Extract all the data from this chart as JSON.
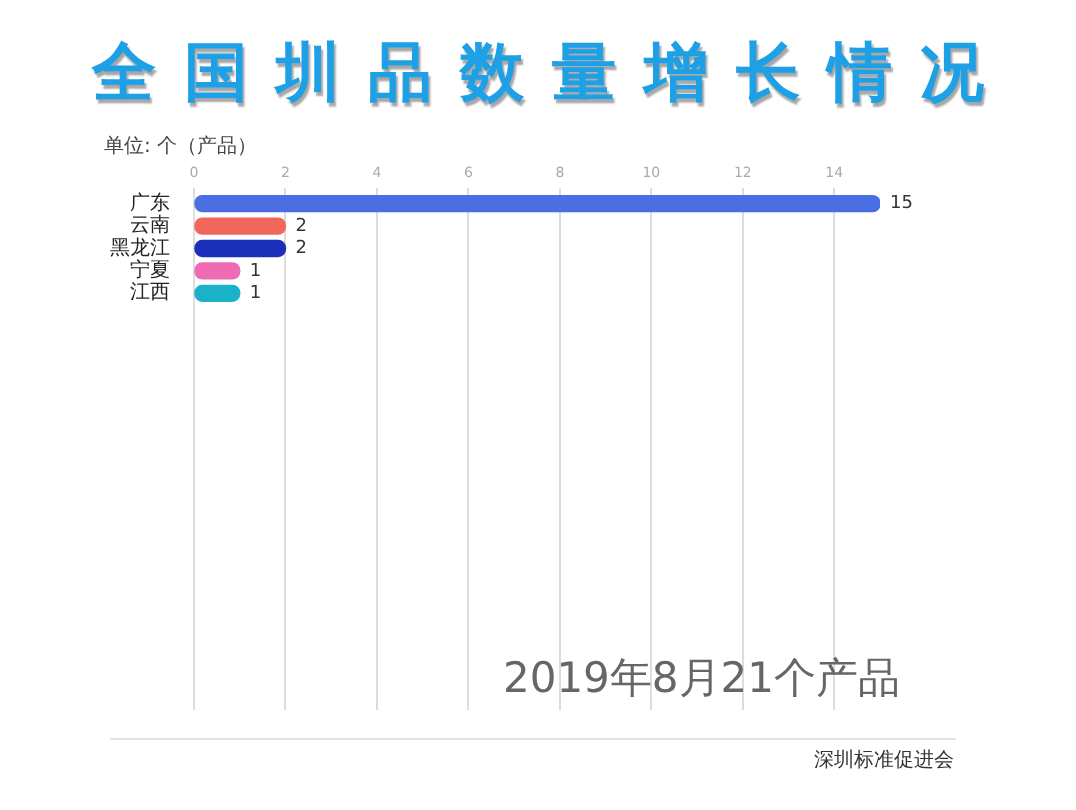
{
  "chart_data": {
    "type": "bar",
    "orientation": "horizontal",
    "title": "全国圳品数量增长情况",
    "xlabel": "单位: 个（产品）",
    "categories": [
      "广东",
      "云南",
      "黑龙江",
      "宁夏",
      "江西"
    ],
    "values": [
      15,
      2,
      2,
      1,
      1
    ],
    "colors": [
      "#4a6fe3",
      "#f2675c",
      "#1b2fb8",
      "#ef6bb5",
      "#1bb1c9"
    ],
    "xlim": [
      0,
      15
    ],
    "xticks": [
      0,
      2,
      4,
      6,
      8,
      10,
      12,
      14
    ],
    "grid": "x",
    "legend": false,
    "data_labels": true,
    "annotations": [
      "2019年8月21个产品",
      "深圳标准促进会"
    ]
  }
}
